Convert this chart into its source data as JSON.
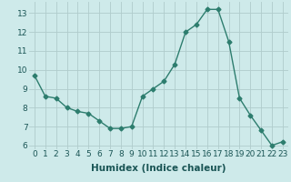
{
  "x": [
    0,
    1,
    2,
    3,
    4,
    5,
    6,
    7,
    8,
    9,
    10,
    11,
    12,
    13,
    14,
    15,
    16,
    17,
    18,
    19,
    20,
    21,
    22,
    23
  ],
  "y": [
    9.7,
    8.6,
    8.5,
    8.0,
    7.8,
    7.7,
    7.3,
    6.9,
    6.9,
    7.0,
    8.6,
    9.0,
    9.4,
    10.3,
    12.0,
    12.4,
    13.2,
    13.2,
    11.5,
    8.5,
    7.6,
    6.8,
    6.0,
    6.2
  ],
  "line_color": "#2d7d6e",
  "marker": "D",
  "marker_size": 2.5,
  "bg_color": "#ceeaea",
  "grid_color": "#b0cccc",
  "xlabel": "Humidex (Indice chaleur)",
  "ylim": [
    5.8,
    13.6
  ],
  "xlim": [
    -0.5,
    23.5
  ],
  "yticks": [
    6,
    7,
    8,
    9,
    10,
    11,
    12,
    13
  ],
  "xticks": [
    0,
    1,
    2,
    3,
    4,
    5,
    6,
    7,
    8,
    9,
    10,
    11,
    12,
    13,
    14,
    15,
    16,
    17,
    18,
    19,
    20,
    21,
    22,
    23
  ],
  "tick_label_fontsize": 6.5,
  "xlabel_fontsize": 7.5,
  "linewidth": 1.0
}
